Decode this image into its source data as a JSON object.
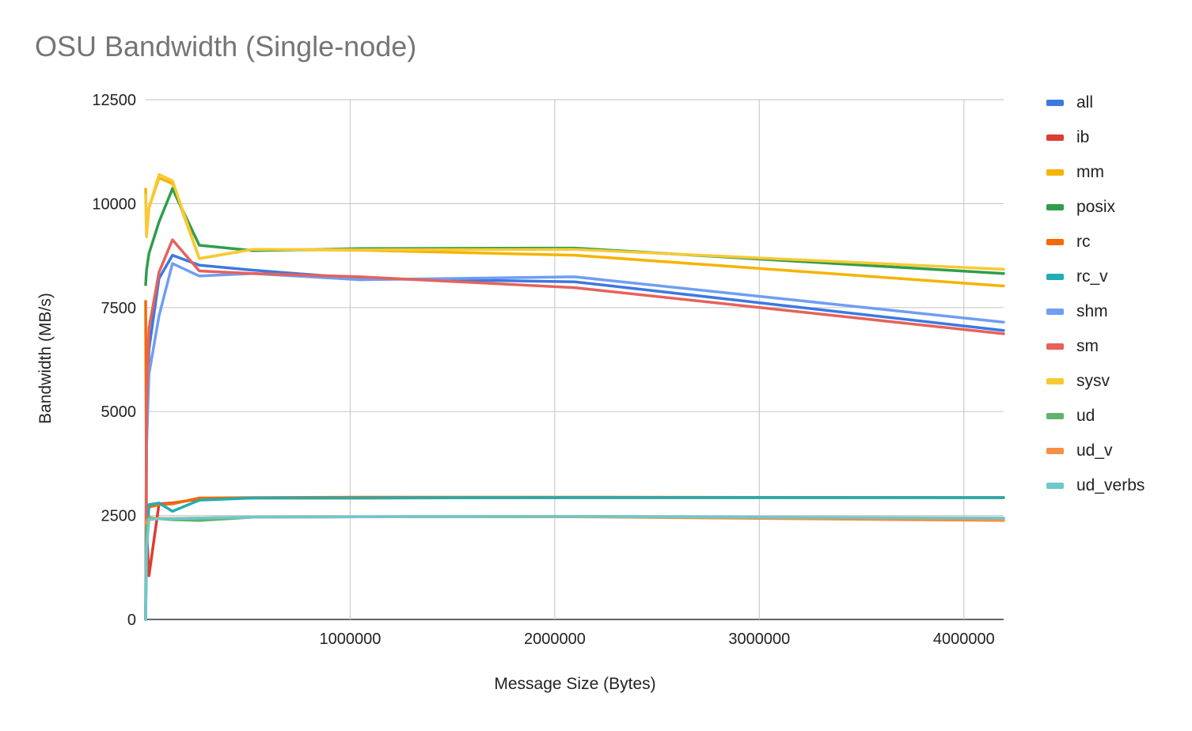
{
  "chart_data": {
    "type": "line",
    "title": "OSU Bandwidth (Single-node)",
    "xlabel": "Message Size (Bytes)",
    "ylabel": "Bandwidth (MB/s)",
    "xlim": [
      0,
      4194304
    ],
    "ylim": [
      0,
      12500
    ],
    "x_ticks": [
      1000000,
      2000000,
      3000000,
      4000000
    ],
    "y_ticks": [
      0,
      2500,
      5000,
      7500,
      10000,
      12500
    ],
    "grid": true,
    "legend_position": "right",
    "x": [
      1,
      4096,
      16384,
      65536,
      131072,
      262144,
      524288,
      1048576,
      2097152,
      4194304
    ],
    "series": [
      {
        "name": "all",
        "color": "#3d78e0",
        "values": [
          0,
          4200,
          6500,
          8200,
          8760,
          8520,
          8400,
          8200,
          8120,
          6950
        ]
      },
      {
        "name": "ib",
        "color": "#db3e32",
        "values": [
          0,
          2200,
          1050,
          2780,
          2800,
          2900,
          2920,
          2920,
          2930,
          2930
        ]
      },
      {
        "name": "mm",
        "color": "#f4b400",
        "values": [
          10350,
          9300,
          9900,
          10620,
          10480,
          8680,
          8900,
          8880,
          8760,
          8020
        ]
      },
      {
        "name": "posix",
        "color": "#2f9e4a",
        "values": [
          8050,
          8400,
          8800,
          9560,
          10360,
          9000,
          8870,
          8920,
          8930,
          8320
        ]
      },
      {
        "name": "rc",
        "color": "#f56a05",
        "values": [
          7650,
          2600,
          2700,
          2760,
          2780,
          2920,
          2930,
          2940,
          2940,
          2930
        ]
      },
      {
        "name": "rc_v",
        "color": "#20adb3",
        "values": [
          0,
          1500,
          2760,
          2800,
          2600,
          2870,
          2920,
          2920,
          2930,
          2930
        ]
      },
      {
        "name": "shm",
        "color": "#6f9ef2",
        "values": [
          0,
          4150,
          5900,
          7300,
          8560,
          8260,
          8320,
          8170,
          8240,
          7150
        ]
      },
      {
        "name": "sm",
        "color": "#e6625a",
        "values": [
          0,
          5000,
          7000,
          8350,
          9130,
          8380,
          8320,
          8240,
          7980,
          6870
        ]
      },
      {
        "name": "sysv",
        "color": "#f9c934",
        "values": [
          10200,
          9200,
          9900,
          10700,
          10550,
          8680,
          8900,
          8890,
          8900,
          8420
        ]
      },
      {
        "name": "ud",
        "color": "#5fb36b",
        "values": [
          0,
          2400,
          2450,
          2420,
          2400,
          2380,
          2460,
          2470,
          2480,
          2420
        ]
      },
      {
        "name": "ud_v",
        "color": "#f68e45",
        "values": [
          2300,
          2350,
          2420,
          2430,
          2430,
          2440,
          2460,
          2470,
          2470,
          2380
        ]
      },
      {
        "name": "ud_verbs",
        "color": "#6ec8cc",
        "values": [
          0,
          1700,
          2400,
          2420,
          2420,
          2440,
          2460,
          2470,
          2480,
          2440
        ]
      }
    ]
  }
}
